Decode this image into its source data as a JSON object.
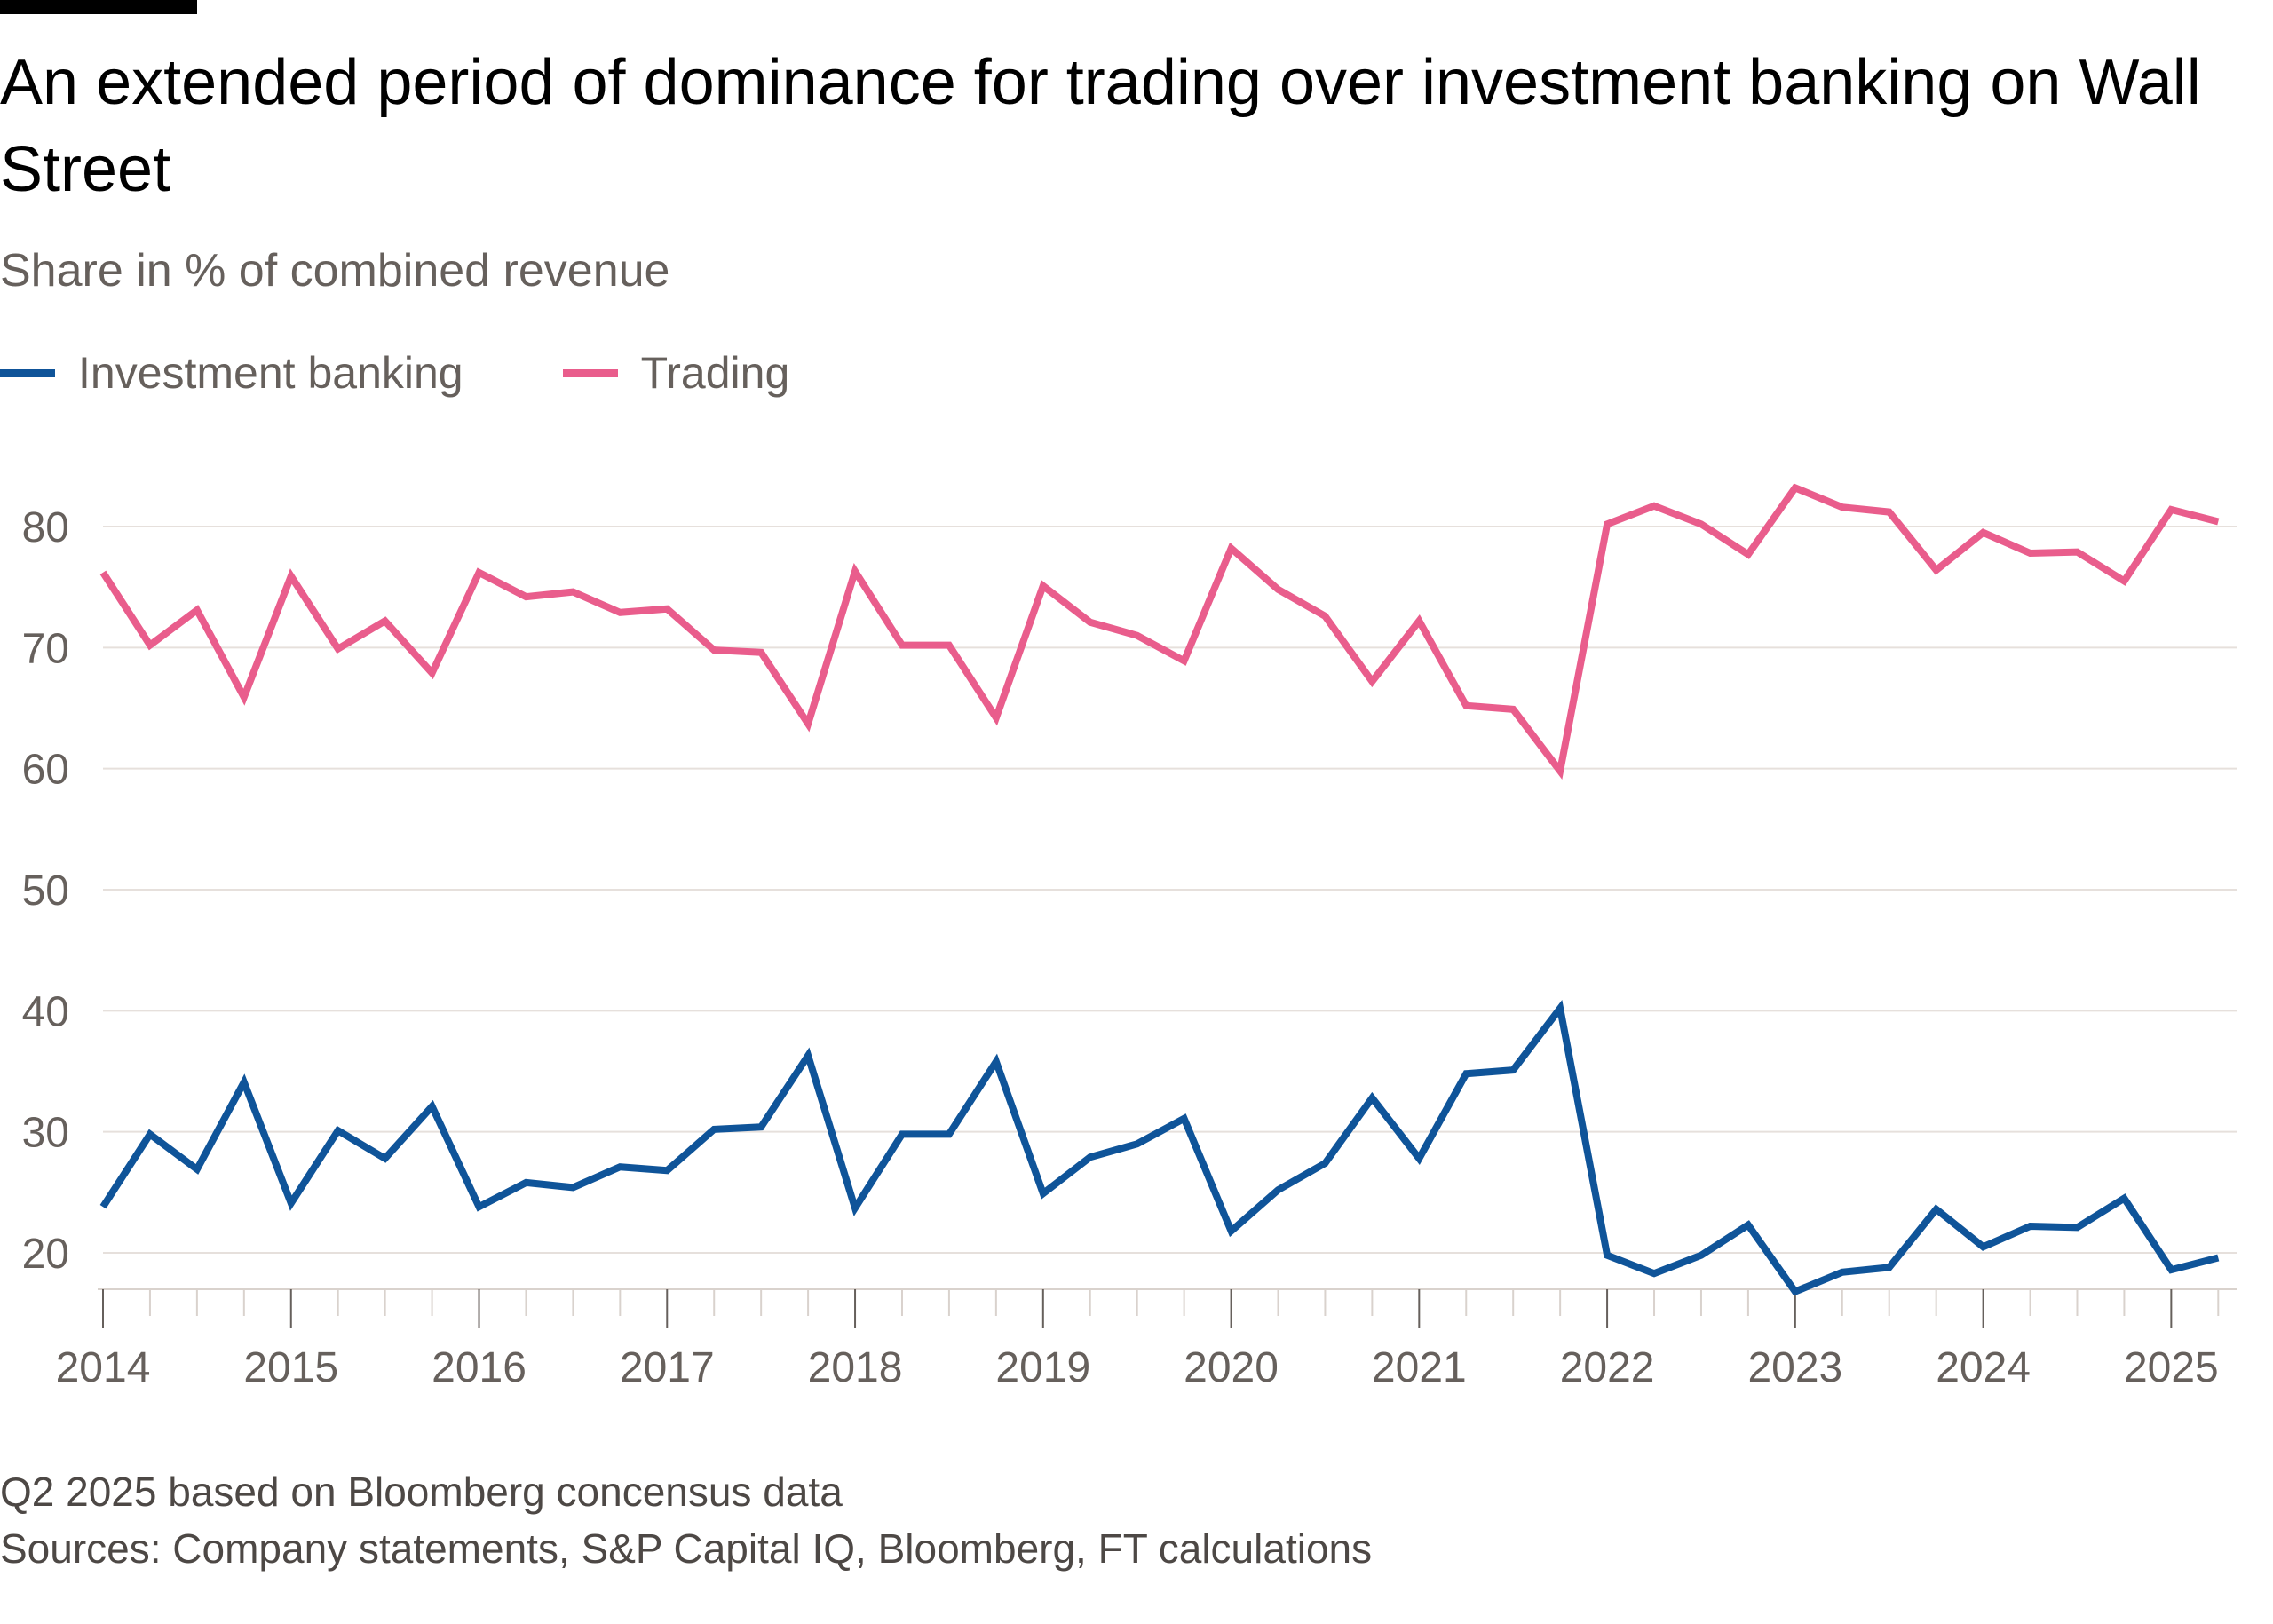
{
  "header": {
    "title": "An extended period of dominance for trading over investment banking on Wall Street",
    "subtitle": "Share in % of combined revenue"
  },
  "legend": [
    {
      "label": "Investment banking",
      "color": "#0f5499"
    },
    {
      "label": "Trading",
      "color": "#e95d8c"
    }
  ],
  "footer": {
    "note": "Q2 2025 based on Bloomberg concensus data",
    "sources": "Sources: Company statements, S&P Capital IQ, Bloomberg, FT calculations"
  },
  "chart_data": {
    "type": "line",
    "x_tick_labels": [
      "2014",
      "2015",
      "2016",
      "2017",
      "2018",
      "2019",
      "2020",
      "2021",
      "2022",
      "2023",
      "2024",
      "2025"
    ],
    "y_tick_labels": [
      "20",
      "30",
      "40",
      "50",
      "60",
      "70",
      "80"
    ],
    "ylim": [
      15,
      85
    ],
    "grid": true,
    "legend_position": "top-left",
    "x": [
      "Q1 2014",
      "Q2 2014",
      "Q3 2014",
      "Q4 2014",
      "Q1 2015",
      "Q2 2015",
      "Q3 2015",
      "Q4 2015",
      "Q1 2016",
      "Q2 2016",
      "Q3 2016",
      "Q4 2016",
      "Q1 2017",
      "Q2 2017",
      "Q3 2017",
      "Q4 2017",
      "Q1 2018",
      "Q2 2018",
      "Q3 2018",
      "Q4 2018",
      "Q1 2019",
      "Q2 2019",
      "Q3 2019",
      "Q4 2019",
      "Q1 2020",
      "Q2 2020",
      "Q3 2020",
      "Q4 2020",
      "Q1 2021",
      "Q2 2021",
      "Q3 2021",
      "Q4 2021",
      "Q1 2022",
      "Q2 2022",
      "Q3 2022",
      "Q4 2022",
      "Q1 2023",
      "Q2 2023",
      "Q3 2023",
      "Q4 2023",
      "Q1 2024",
      "Q2 2024",
      "Q3 2024",
      "Q4 2024",
      "Q1 2025",
      "Q2 2025"
    ],
    "series": [
      {
        "name": "Investment banking",
        "color": "#0f5499",
        "values": [
          23.8,
          29.8,
          26.9,
          34.1,
          24.1,
          30.1,
          27.8,
          32.1,
          23.8,
          25.8,
          25.4,
          27.1,
          26.8,
          30.2,
          30.4,
          36.3,
          23.7,
          29.8,
          29.8,
          35.8,
          24.9,
          27.9,
          29.0,
          31.1,
          21.8,
          25.2,
          27.4,
          32.8,
          27.8,
          34.8,
          35.1,
          40.2,
          19.8,
          18.3,
          19.8,
          22.3,
          16.8,
          18.4,
          18.8,
          23.6,
          20.5,
          22.2,
          22.1,
          24.5,
          18.6,
          19.6
        ]
      },
      {
        "name": "Trading",
        "color": "#e95d8c",
        "values": [
          76.2,
          70.2,
          73.1,
          65.9,
          75.9,
          69.9,
          72.2,
          67.9,
          76.2,
          74.2,
          74.6,
          72.9,
          73.2,
          69.8,
          69.6,
          63.7,
          76.3,
          70.2,
          70.2,
          64.2,
          75.1,
          72.1,
          71.0,
          68.9,
          78.2,
          74.8,
          72.6,
          67.2,
          72.2,
          65.2,
          64.9,
          59.8,
          80.2,
          81.7,
          80.2,
          77.7,
          83.2,
          81.6,
          81.2,
          76.4,
          79.5,
          77.8,
          77.9,
          75.5,
          81.4,
          80.4
        ]
      }
    ]
  }
}
